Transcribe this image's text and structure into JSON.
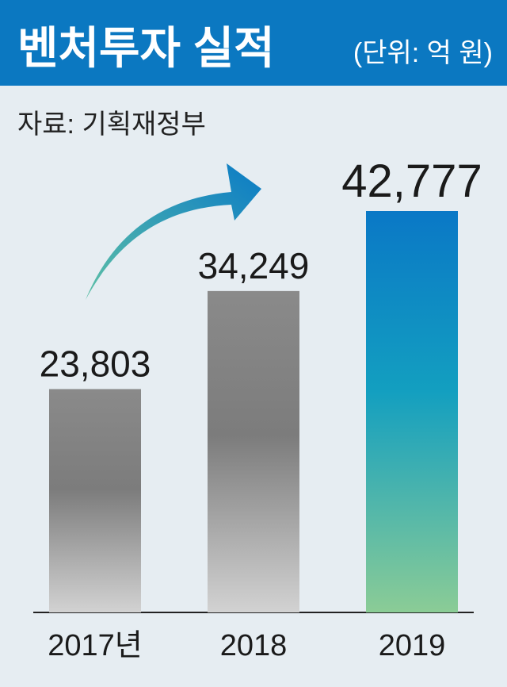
{
  "chart_data": {
    "type": "bar",
    "title": "벤처투자 실적",
    "subtitle": "(단위: 억 원)",
    "source": "자료: 기획재정부",
    "categories": [
      "2017년",
      "2018",
      "2019"
    ],
    "values": [
      23803,
      34249,
      42777
    ],
    "value_labels": [
      "23,803",
      "34,249",
      "42,777"
    ]
  }
}
